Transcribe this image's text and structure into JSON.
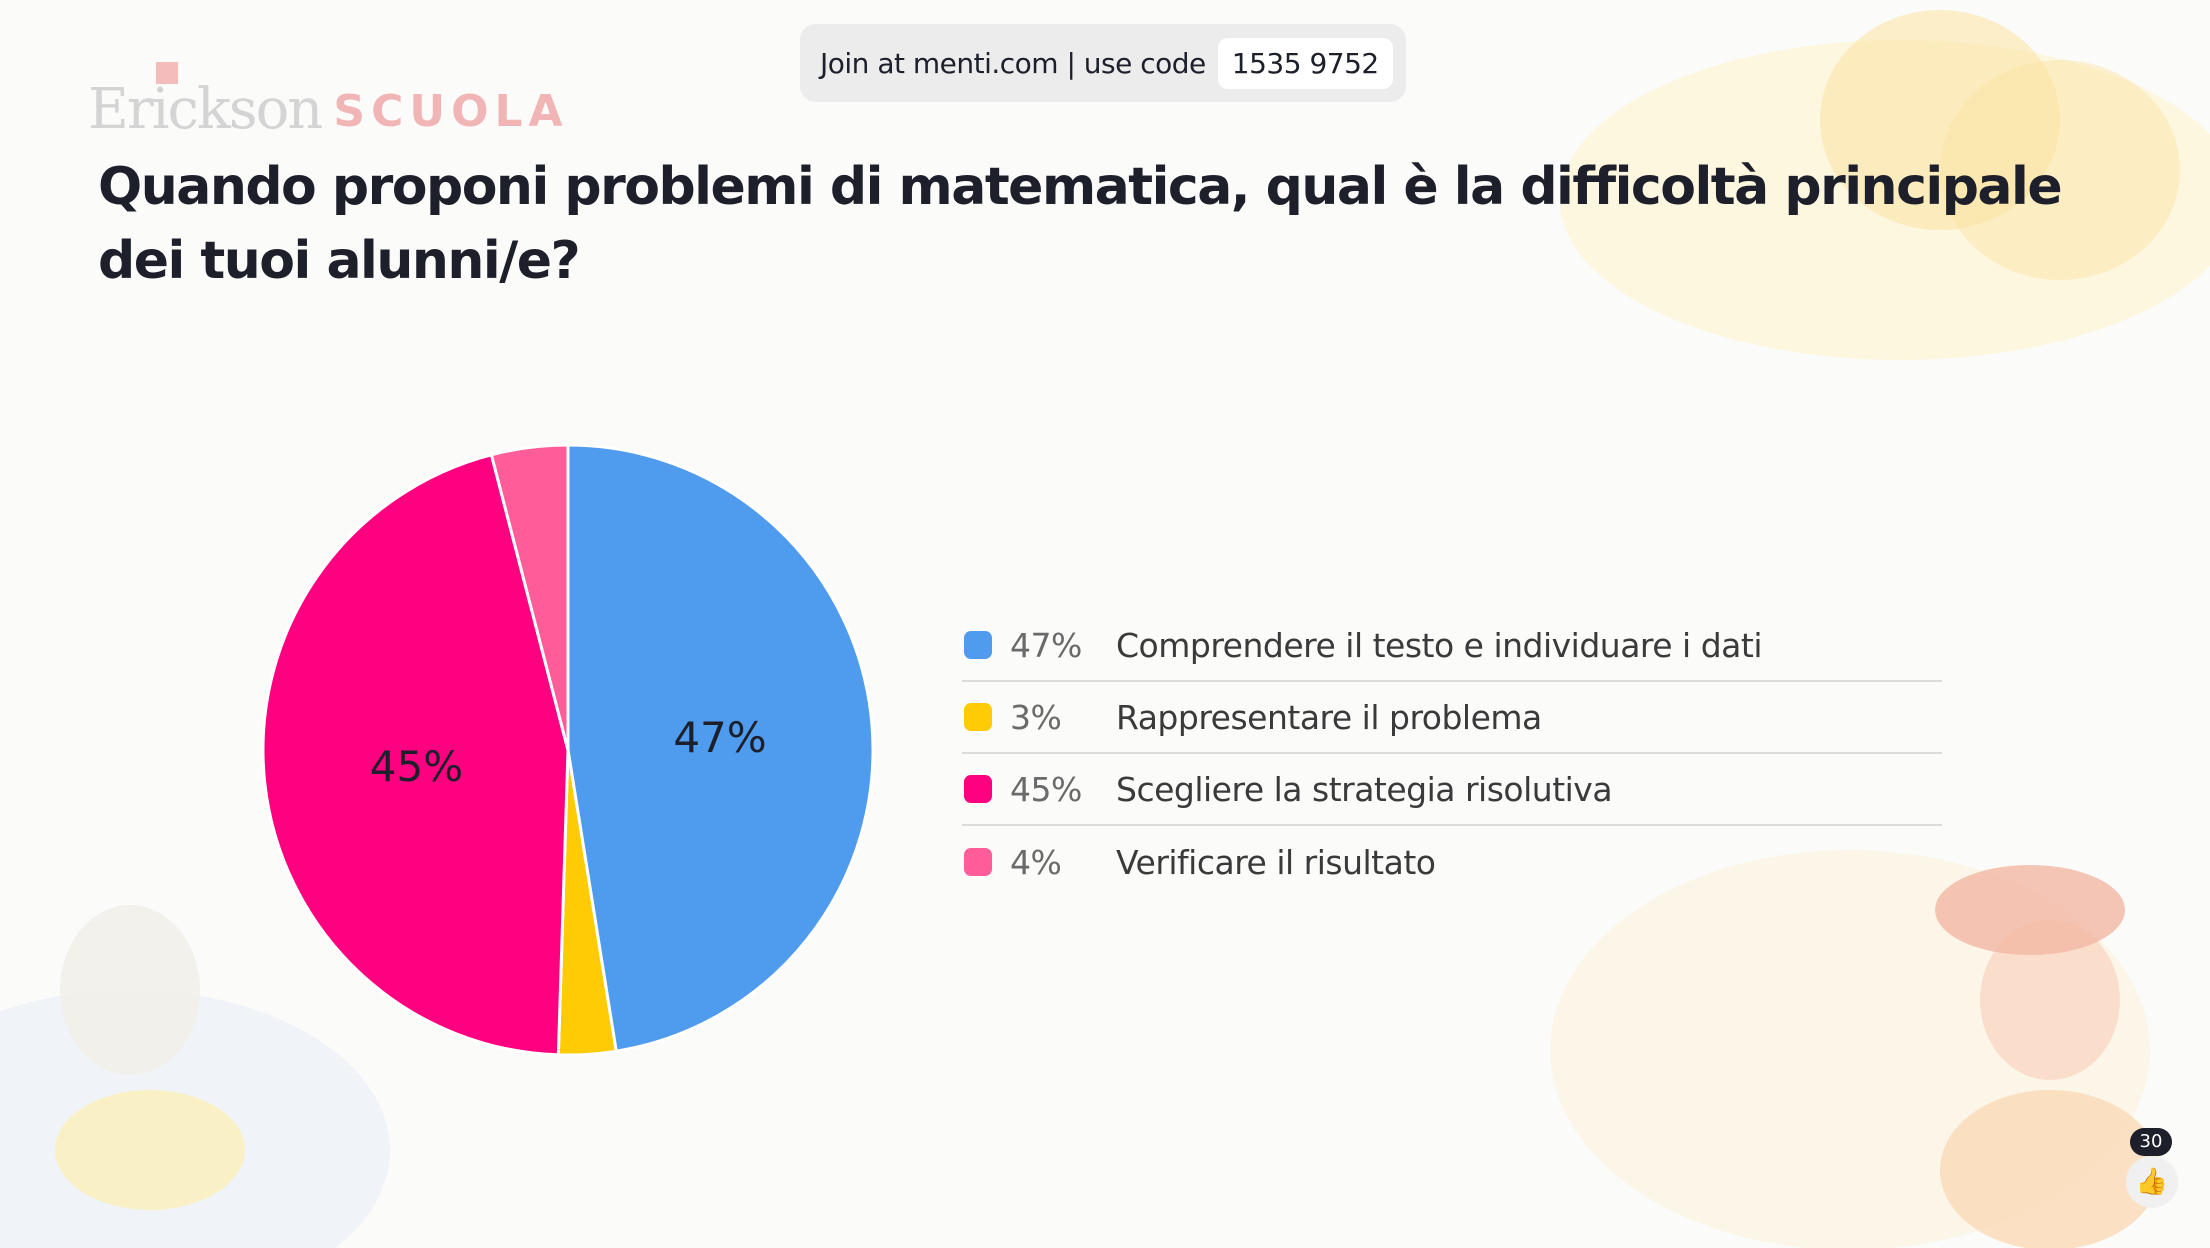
{
  "join": {
    "text": "Join at menti.com | use code",
    "code": "1535 9752"
  },
  "logo": {
    "brand": "Erickson",
    "sub": "SCUOLA"
  },
  "question": "Quando proponi problemi di matematica, qual è la difficoltà principale dei tuoi alunni/e?",
  "likes": {
    "count": "30",
    "icon": "thumbs-up-icon"
  },
  "chart_data": {
    "type": "pie",
    "title": "",
    "series": [
      {
        "name": "Comprendere il testo e individuare i dati",
        "value": 47,
        "label": "47%",
        "color": "#4f9bee"
      },
      {
        "name": "Rappresentare il problema",
        "value": 3,
        "label": "3%",
        "color": "#ffcb05"
      },
      {
        "name": "Scegliere la strategia risolutiva",
        "value": 45,
        "label": "45%",
        "color": "#ff0080"
      },
      {
        "name": "Verificare il risultato",
        "value": 4,
        "label": "4%",
        "color": "#ff5c9a"
      }
    ],
    "legend": "right"
  }
}
